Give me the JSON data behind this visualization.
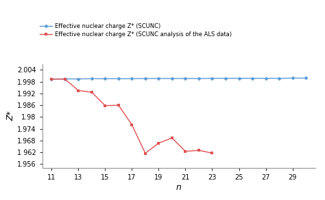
{
  "blue_x": [
    11,
    12,
    13,
    14,
    15,
    16,
    17,
    18,
    19,
    20,
    21,
    22,
    23,
    24,
    25,
    26,
    27,
    28,
    29,
    30
  ],
  "blue_y": [
    1.9993,
    1.9994,
    1.9994,
    1.9995,
    1.9995,
    1.9995,
    1.9995,
    1.9996,
    1.9996,
    1.9996,
    1.9996,
    1.9996,
    1.9997,
    1.9997,
    1.9997,
    1.9997,
    1.9997,
    1.9997,
    1.9998,
    1.9998
  ],
  "red_x2": [
    11,
    12,
    13,
    14,
    15,
    16,
    17,
    18,
    19,
    20,
    21,
    22,
    23
  ],
  "red_y2": [
    1.9993,
    1.9993,
    1.9935,
    1.9926,
    1.9858,
    1.986,
    1.976,
    1.9615,
    1.9667,
    1.9693,
    1.9625,
    1.963,
    1.9616
  ],
  "blue_label": "Effective nuclear charge Z* (SCUNC)",
  "red_label": "Effective nuclear charge Z* (SCUNC analysis of the ALS data)",
  "xlabel": "n",
  "ylabel": "Z*",
  "ytick_vals": [
    1.956,
    1.962,
    1.968,
    1.974,
    1.98,
    1.986,
    1.992,
    1.998,
    2.004
  ],
  "ytick_labels": [
    "1.956",
    "1 962",
    "1.968",
    "1.974",
    "1.98",
    "1.986",
    "1.992",
    "1.998",
    "2.004"
  ],
  "xticks": [
    11,
    13,
    15,
    17,
    19,
    21,
    23,
    25,
    27,
    29
  ],
  "xlim": [
    10.3,
    30.7
  ],
  "ylim": [
    1.954,
    2.007
  ],
  "blue_color": "#5B9BD5",
  "red_color": "#E05050",
  "plot_bg": "#FFFFFF",
  "fig_bg": "#FFFFFF",
  "border_color": "#AAAAAA"
}
